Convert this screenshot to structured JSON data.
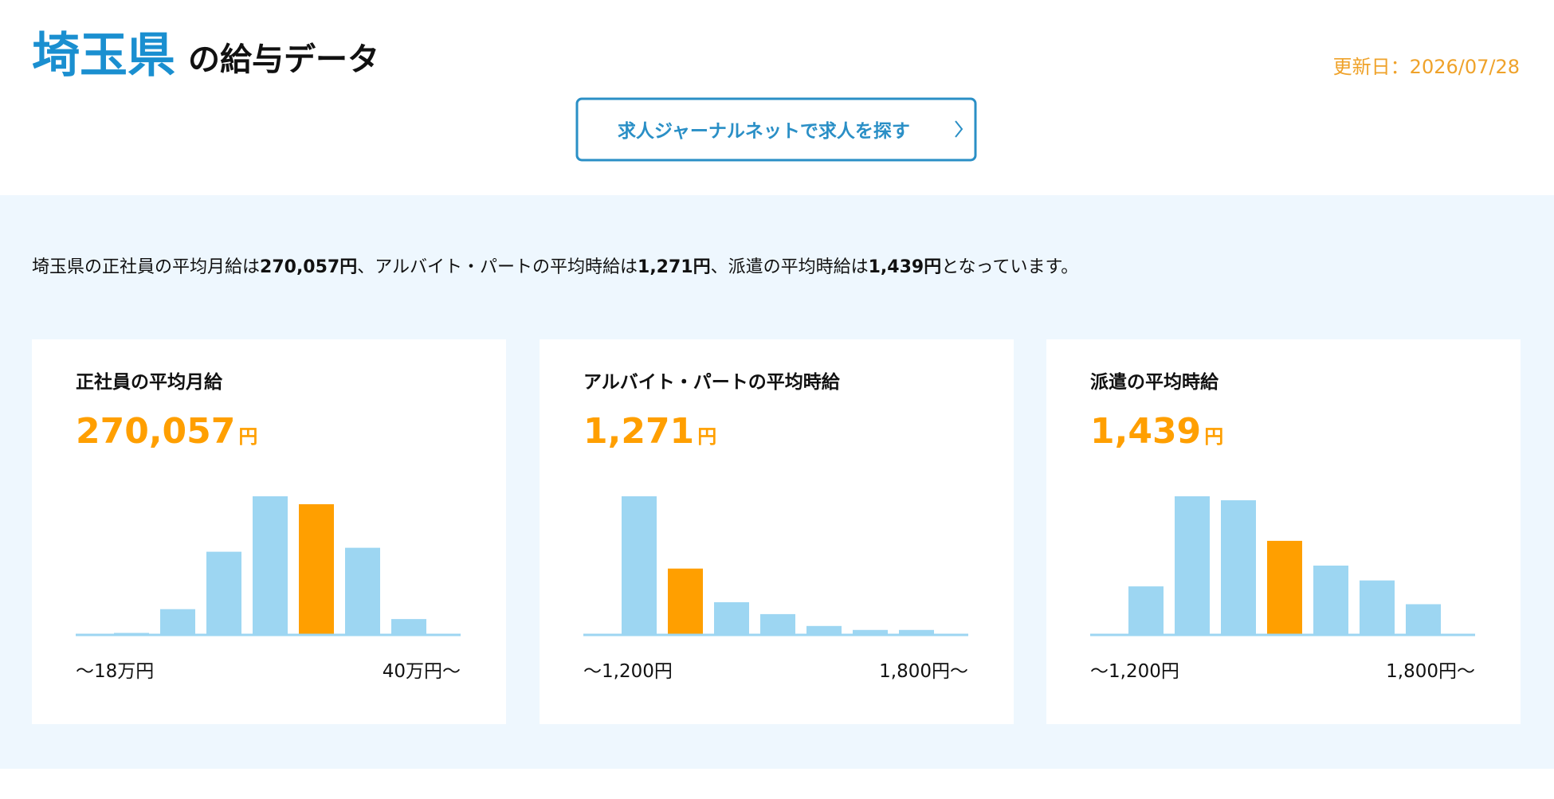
{
  "header": {
    "title_pref": "埼玉県",
    "title_rest": "の給与データ",
    "updated": "更新日：2026/07/28",
    "button": "求人ジャーナルネットで求人を探す"
  },
  "summary": [
    {
      "text": "埼玉県の正社員の平均月給は",
      "bold": false
    },
    {
      "text": "270,057円",
      "bold": true
    },
    {
      "text": "、アルバイト・パートの平均時給は",
      "bold": false
    },
    {
      "text": "1,271円",
      "bold": true
    },
    {
      "text": "、派遣の平均時給は",
      "bold": false
    },
    {
      "text": "1,439円",
      "bold": true
    },
    {
      "text": "となっています。",
      "bold": false
    }
  ],
  "chart_data": [
    {
      "type": "bar",
      "title": "正社員の平均月給",
      "value": "270,057",
      "unit": "円",
      "values": [
        2,
        26,
        84,
        140,
        132,
        88,
        16
      ],
      "color": "#9dd6f2",
      "highlight_color": "#ff9f00",
      "highlight_index": 4,
      "x_start_label": "〜18万円",
      "x_end_label": "40万円〜"
    },
    {
      "type": "bar",
      "title": "アルバイト・パートの平均時給",
      "value": "1,271",
      "unit": "円",
      "values": [
        140,
        67,
        33,
        21,
        9,
        5,
        5
      ],
      "color": "#9dd6f2",
      "highlight_color": "#ff9f00",
      "highlight_index": 1,
      "x_start_label": "〜1,200円",
      "x_end_label": "1,800円〜"
    },
    {
      "type": "bar",
      "title": "派遣の平均時給",
      "value": "1,439",
      "unit": "円",
      "values": [
        49,
        140,
        136,
        95,
        70,
        55,
        31
      ],
      "color": "#9dd6f2",
      "highlight_color": "#ff9f00",
      "highlight_index": 3,
      "x_start_label": "〜1,200円",
      "x_end_label": "1,800円〜"
    }
  ]
}
